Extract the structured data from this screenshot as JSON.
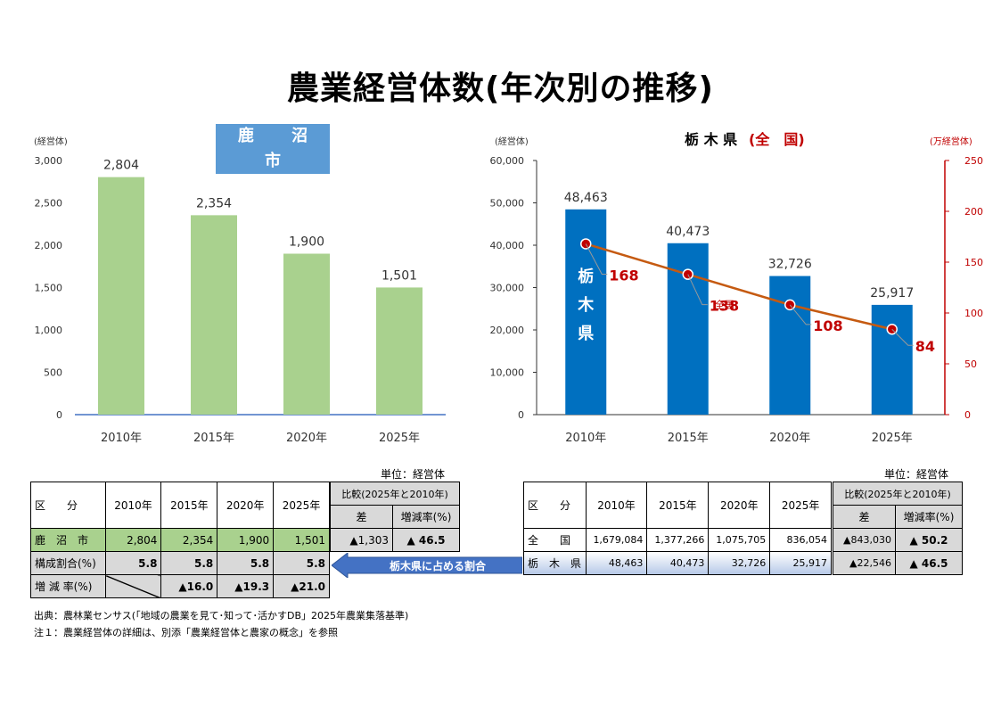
{
  "page_title": "農業経営体数(年次別の推移)",
  "left_chart_label": "鹿 沼 市",
  "right_chart_label_a": "栃 木 県",
  "right_chart_label_b": "(全　国)",
  "left_unit": "(経営体)",
  "right_unit_left": "(経営体)",
  "right_unit_right": "(万経営体)",
  "tochigi_vertical": [
    "栃",
    "木",
    "県"
  ],
  "zenkoku_label": "全国",
  "chart_data": [
    {
      "type": "bar",
      "title": "鹿 沼 市",
      "ylabel": "(経営体)",
      "categories": [
        "2010年",
        "2015年",
        "2020年",
        "2025年"
      ],
      "values": [
        2804,
        2354,
        1900,
        1501
      ],
      "value_labels": [
        "2,804",
        "2,354",
        "1,900",
        "1,501"
      ],
      "ylim": [
        0,
        3000
      ],
      "yticks": [
        "0",
        "500",
        "1,000",
        "1,500",
        "2,000",
        "2,500",
        "3,000"
      ],
      "color": "#a9d18e"
    },
    {
      "type": "bar",
      "title": "栃 木 県",
      "ylabel": "(経営体)",
      "categories": [
        "2010年",
        "2015年",
        "2020年",
        "2025年"
      ],
      "series": [
        {
          "name": "栃木県",
          "type": "bar",
          "values": [
            48463,
            40473,
            32726,
            25917
          ],
          "labels": [
            "48,463",
            "40,473",
            "32,726",
            "25,917"
          ],
          "color": "#0070c0"
        },
        {
          "name": "全国",
          "type": "line",
          "values": [
            168,
            138,
            108,
            84
          ],
          "labels": [
            "168",
            "138",
            "108",
            "84"
          ],
          "color": "#c55a11",
          "axis": "right"
        }
      ],
      "ylim": [
        0,
        60000
      ],
      "yticks": [
        "0",
        "10,000",
        "20,000",
        "30,000",
        "40,000",
        "50,000",
        "60,000"
      ],
      "y2lim": [
        0,
        250
      ],
      "y2ticks": [
        "0",
        "50",
        "100",
        "150",
        "200",
        "250"
      ],
      "y2label": "(万経営体)"
    }
  ],
  "left_table": {
    "unit": "単位：経営体",
    "header_kubun": "区　　分",
    "years": [
      "2010年",
      "2015年",
      "2020年",
      "2025年"
    ],
    "compare_header": "比較(2025年と2010年)",
    "diff_header": "差",
    "rate_header": "増減率(%)",
    "row1": {
      "label": "鹿　沼　市",
      "values": [
        "2,804",
        "2,354",
        "1,900",
        "1,501"
      ],
      "diff": "▲1,303",
      "rate": "▲ 46.5"
    },
    "row2": {
      "label": "構成割合(%)",
      "values": [
        "5.8",
        "5.8",
        "5.8",
        "5.8"
      ]
    },
    "row3": {
      "label": "増 減 率(%)",
      "values": [
        "▲16.0",
        "▲19.3",
        "▲21.0"
      ]
    }
  },
  "arrow_label": "栃木県に占める割合",
  "right_table": {
    "unit": "単位：経営体",
    "header_kubun": "区　　分",
    "years": [
      "2010年",
      "2015年",
      "2020年",
      "2025年"
    ],
    "compare_header": "比較(2025年と2010年)",
    "diff_header": "差",
    "rate_header": "増減率(%)",
    "row1": {
      "label": "全　　国",
      "values": [
        "1,679,084",
        "1,377,266",
        "1,075,705",
        "836,054"
      ],
      "diff": "▲843,030",
      "rate": "▲ 50.2"
    },
    "row2": {
      "label": "栃　木　県",
      "values": [
        "48,463",
        "40,473",
        "32,726",
        "25,917"
      ],
      "diff": "▲22,546",
      "rate": "▲ 46.5"
    }
  },
  "notes": [
    "出典：農林業センサス(「地域の農業を見て･知って･活かすDB」2025年農業集落基準)",
    "注１：農業経営体の詳細は、別添「農業経営体と農家の概念」を参照"
  ]
}
